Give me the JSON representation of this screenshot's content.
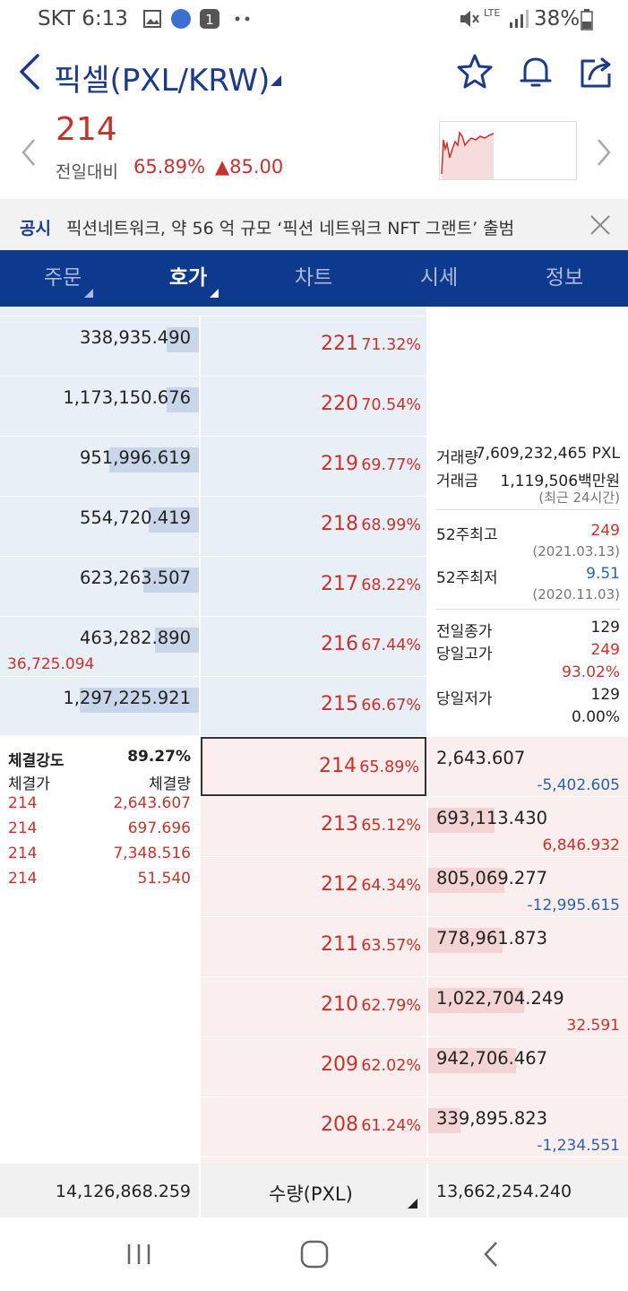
{
  "status": {
    "carrier_time": "SKT 6:13",
    "battery": "38%",
    "network": "LTE"
  },
  "header": {
    "title": "픽셀(PXL/KRW)"
  },
  "price": {
    "current": "214",
    "compare_label": "전일대비",
    "change_pct": "65.89%",
    "change_amt": "▲85.00"
  },
  "notice": {
    "label": "공시",
    "text": "픽션네트워크, 약 56 억 규모 ‘픽션 네트워크 NFT 그랜트’ 출범"
  },
  "tabs": [
    {
      "label": "주문"
    },
    {
      "label": "호가"
    },
    {
      "label": "차트"
    },
    {
      "label": "시세"
    },
    {
      "label": "정보"
    }
  ],
  "asks": [
    {
      "qty": "338,935.490",
      "fill": 0.16,
      "price": "221",
      "rate": "71.32%"
    },
    {
      "qty": "1,173,150.676",
      "fill": 0.16,
      "price": "220",
      "rate": "70.54%"
    },
    {
      "qty": "951,996.619",
      "fill": 0.45,
      "price": "219",
      "rate": "69.77%"
    },
    {
      "qty": "554,720.419",
      "fill": 0.25,
      "price": "218",
      "rate": "68.99%"
    },
    {
      "qty": "623,263.507",
      "fill": 0.28,
      "price": "217",
      "rate": "68.22%"
    },
    {
      "qty": "463,282.890",
      "fill": 0.22,
      "price": "216",
      "rate": "67.44%",
      "change": "36,725.094"
    },
    {
      "qty": "1,297,225.921",
      "fill": 0.6,
      "price": "215",
      "rate": "66.67%"
    }
  ],
  "bids": [
    {
      "qty": "2,643.607",
      "fill": 0.0,
      "price": "214",
      "rate": "65.89%",
      "change": "-5,402.605",
      "change_color": "blue"
    },
    {
      "qty": "693,113.430",
      "fill": 0.33,
      "price": "213",
      "rate": "65.12%",
      "change": "6,846.932",
      "change_color": "red"
    },
    {
      "qty": "805,069.277",
      "fill": 0.38,
      "price": "212",
      "rate": "64.34%",
      "change": "-12,995.615",
      "change_color": "blue"
    },
    {
      "qty": "778,961.873",
      "fill": 0.37,
      "price": "211",
      "rate": "63.57%"
    },
    {
      "qty": "1,022,704.249",
      "fill": 0.48,
      "price": "210",
      "rate": "62.79%",
      "change": "32.591",
      "change_color": "red"
    },
    {
      "qty": "942,706.467",
      "fill": 0.44,
      "price": "209",
      "rate": "62.02%"
    },
    {
      "qty": "339,895.823",
      "fill": 0.16,
      "price": "208",
      "rate": "61.24%",
      "change": "-1,234.551",
      "change_color": "blue"
    }
  ],
  "stats": {
    "volume_label": "거래량",
    "volume": "7,609,232,465 PXL",
    "amount_label": "거래금",
    "amount": "1,119,506백만원",
    "period": "(최근 24시간)",
    "high52_label": "52주최고",
    "high52": "249",
    "high52_date": "(2021.03.13)",
    "low52_label": "52주최저",
    "low52": "9.51",
    "low52_date": "(2020.11.03)",
    "prev_close_label": "전일종가",
    "prev_close": "129",
    "day_high_label": "당일고가",
    "day_high": "249",
    "day_high_pct": "93.02%",
    "day_low_label": "당일저가",
    "day_low": "129",
    "day_low_pct": "0.00%"
  },
  "trades": {
    "strength_label": "체결강도",
    "strength": "89.27%",
    "price_header": "체결가",
    "qty_header": "체결량",
    "rows": [
      {
        "price": "214",
        "qty": "2,643.607"
      },
      {
        "price": "214",
        "qty": "697.696"
      },
      {
        "price": "214",
        "qty": "7,348.516"
      },
      {
        "price": "214",
        "qty": "51.540"
      }
    ]
  },
  "footer": {
    "ask_total": "14,126,868.259",
    "unit_label": "수량(PXL)",
    "bid_total": "13,662,254.240"
  },
  "colors": {
    "navy": "#0d3a8f",
    "red": "#c8322c",
    "blue": "#2a63b3"
  }
}
